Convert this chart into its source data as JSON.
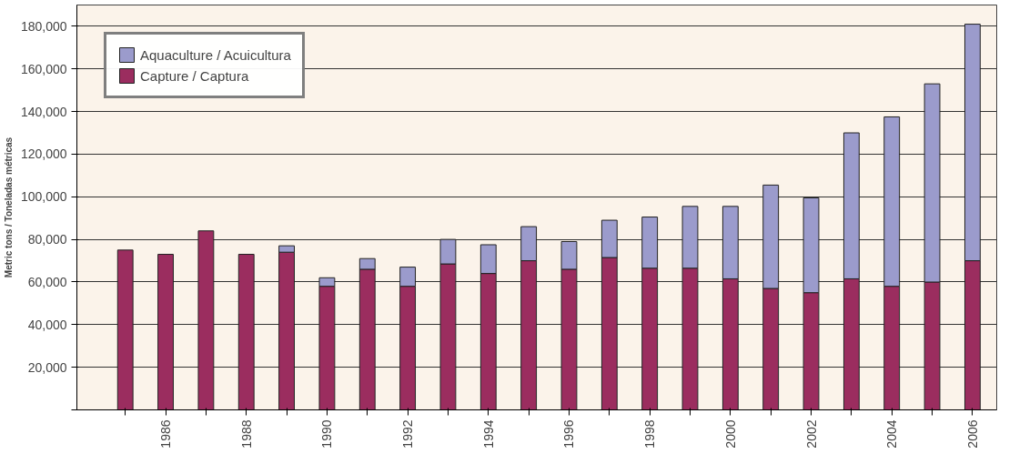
{
  "chart_data": {
    "type": "bar",
    "stacked": true,
    "ylabel": "Metric tons / Toneladas métricas",
    "categories": [
      null,
      "1986",
      null,
      "1988",
      null,
      "1990",
      null,
      "1992",
      null,
      "1994",
      null,
      "1996",
      null,
      "1998",
      null,
      "2000",
      null,
      "2002",
      null,
      "2004",
      null,
      "2006"
    ],
    "series": [
      {
        "name": "Capture / Captura",
        "color": "#9b2d5f",
        "values": [
          75000,
          73000,
          84000,
          73000,
          74000,
          58000,
          66000,
          58000,
          68500,
          64000,
          70000,
          66000,
          71500,
          66500,
          66500,
          61500,
          57000,
          55000,
          61500,
          58000,
          60000,
          70000
        ]
      },
      {
        "name": "Aquaculture / Acuicultura",
        "color": "#9b9bcc",
        "values": [
          0,
          0,
          0,
          0,
          3000,
          4000,
          5000,
          9000,
          11500,
          13500,
          16000,
          13000,
          17500,
          24000,
          29000,
          34000,
          48500,
          44500,
          68500,
          79500,
          93000,
          111000
        ]
      }
    ],
    "ylim": [
      0,
      190000
    ],
    "yticks": [
      {
        "value": 0,
        "label": null
      },
      {
        "value": 20000,
        "label": "20,000"
      },
      {
        "value": 40000,
        "label": "40,000"
      },
      {
        "value": 60000,
        "label": "60,000"
      },
      {
        "value": 80000,
        "label": "80,000"
      },
      {
        "value": 100000,
        "label": "100,000"
      },
      {
        "value": 120000,
        "label": "120,000"
      },
      {
        "value": 140000,
        "label": "140,000"
      },
      {
        "value": 160000,
        "label": "160,000"
      },
      {
        "value": 180000,
        "label": "180,000"
      }
    ],
    "grid": "y",
    "legend": "top left"
  }
}
